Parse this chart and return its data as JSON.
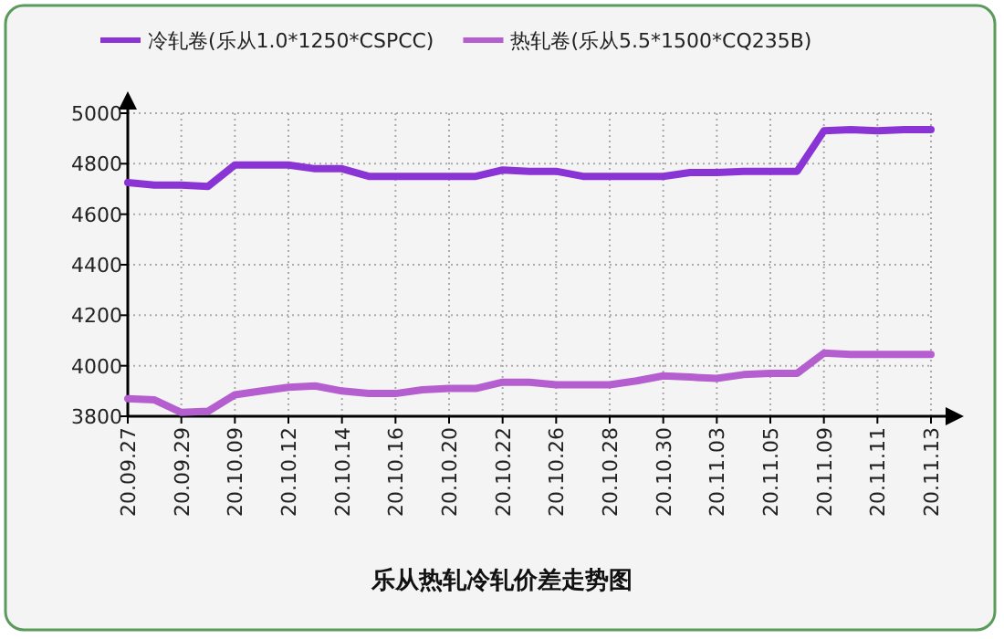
{
  "chart_data": {
    "type": "line",
    "title": "乐从热轧冷轧价差走势图",
    "categories": [
      "20.09.27",
      null,
      "20.09.29",
      null,
      "20.10.09",
      null,
      "20.10.12",
      null,
      "20.10.14",
      null,
      "20.10.16",
      null,
      "20.10.20",
      null,
      "20.10.22",
      null,
      "20.10.26",
      null,
      "20.10.28",
      null,
      "20.10.30",
      null,
      "20.11.03",
      null,
      "20.11.05",
      null,
      "20.11.09",
      null,
      "20.11.11",
      null,
      "20.11.13"
    ],
    "series": [
      {
        "name": "冷轧卷(乐从1.0*1250*CSPCC)",
        "color": "#8b34d6",
        "values": [
          4725,
          4715,
          4715,
          4710,
          4795,
          4795,
          4795,
          4780,
          4780,
          4750,
          4750,
          4750,
          4750,
          4750,
          4775,
          4770,
          4770,
          4750,
          4750,
          4750,
          4750,
          4765,
          4765,
          4770,
          4770,
          4770,
          4930,
          4935,
          4930,
          4935,
          4935
        ]
      },
      {
        "name": "热轧卷(乐从5.5*1500*CQ235B)",
        "color": "#b45ed0",
        "values": [
          3870,
          3865,
          3815,
          3820,
          3885,
          3900,
          3915,
          3920,
          3900,
          3890,
          3890,
          3905,
          3910,
          3910,
          3935,
          3935,
          3925,
          3925,
          3925,
          3940,
          3960,
          3955,
          3950,
          3965,
          3970,
          3970,
          4050,
          4045,
          4045,
          4045,
          4045
        ]
      }
    ],
    "ylim": [
      3800,
      5000
    ],
    "yticks": [
      3800,
      4000,
      4200,
      4400,
      4600,
      4800,
      5000
    ],
    "grid": true,
    "legend": "top"
  }
}
